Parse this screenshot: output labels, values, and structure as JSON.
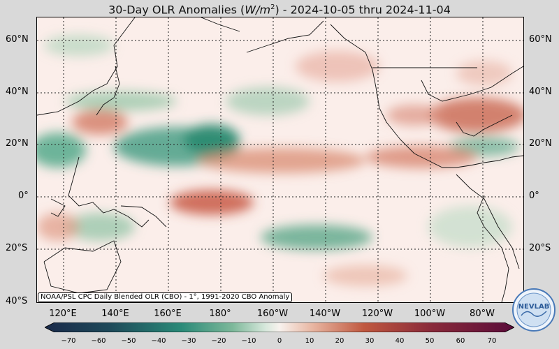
{
  "title": {
    "prefix": "30-Day OLR Anomalies (",
    "unit": "W/m",
    "unit_exp": "2",
    "suffix": ") - 2024-10-05 thru 2024-11-04"
  },
  "axes": {
    "lat_labels": [
      "60°N",
      "40°N",
      "20°N",
      "0°",
      "20°S",
      "40°S"
    ],
    "lon_labels": [
      "120°E",
      "140°E",
      "160°E",
      "180°",
      "160°W",
      "140°W",
      "120°W",
      "100°W",
      "80°W"
    ]
  },
  "footnote": "NOAA/PSL CPC Daily Blended OLR (CBO) - 1°, 1991-2020 CBO Anomaly",
  "colorbar": {
    "ticks": [
      "−70",
      "−60",
      "−50",
      "−40",
      "−30",
      "−20",
      "−10",
      "0",
      "10",
      "20",
      "30",
      "40",
      "50",
      "60",
      "70"
    ],
    "colors": {
      "neg_far": "#1a2a4a",
      "neg_mid": "#2a8a78",
      "neg_near": "#a8cfae",
      "zero": "#f8f2ee",
      "pos_near": "#e8b6a2",
      "pos_mid": "#c0583f",
      "pos_far": "#5a0c3a"
    }
  },
  "logo": {
    "text": "NEVLAB"
  }
}
